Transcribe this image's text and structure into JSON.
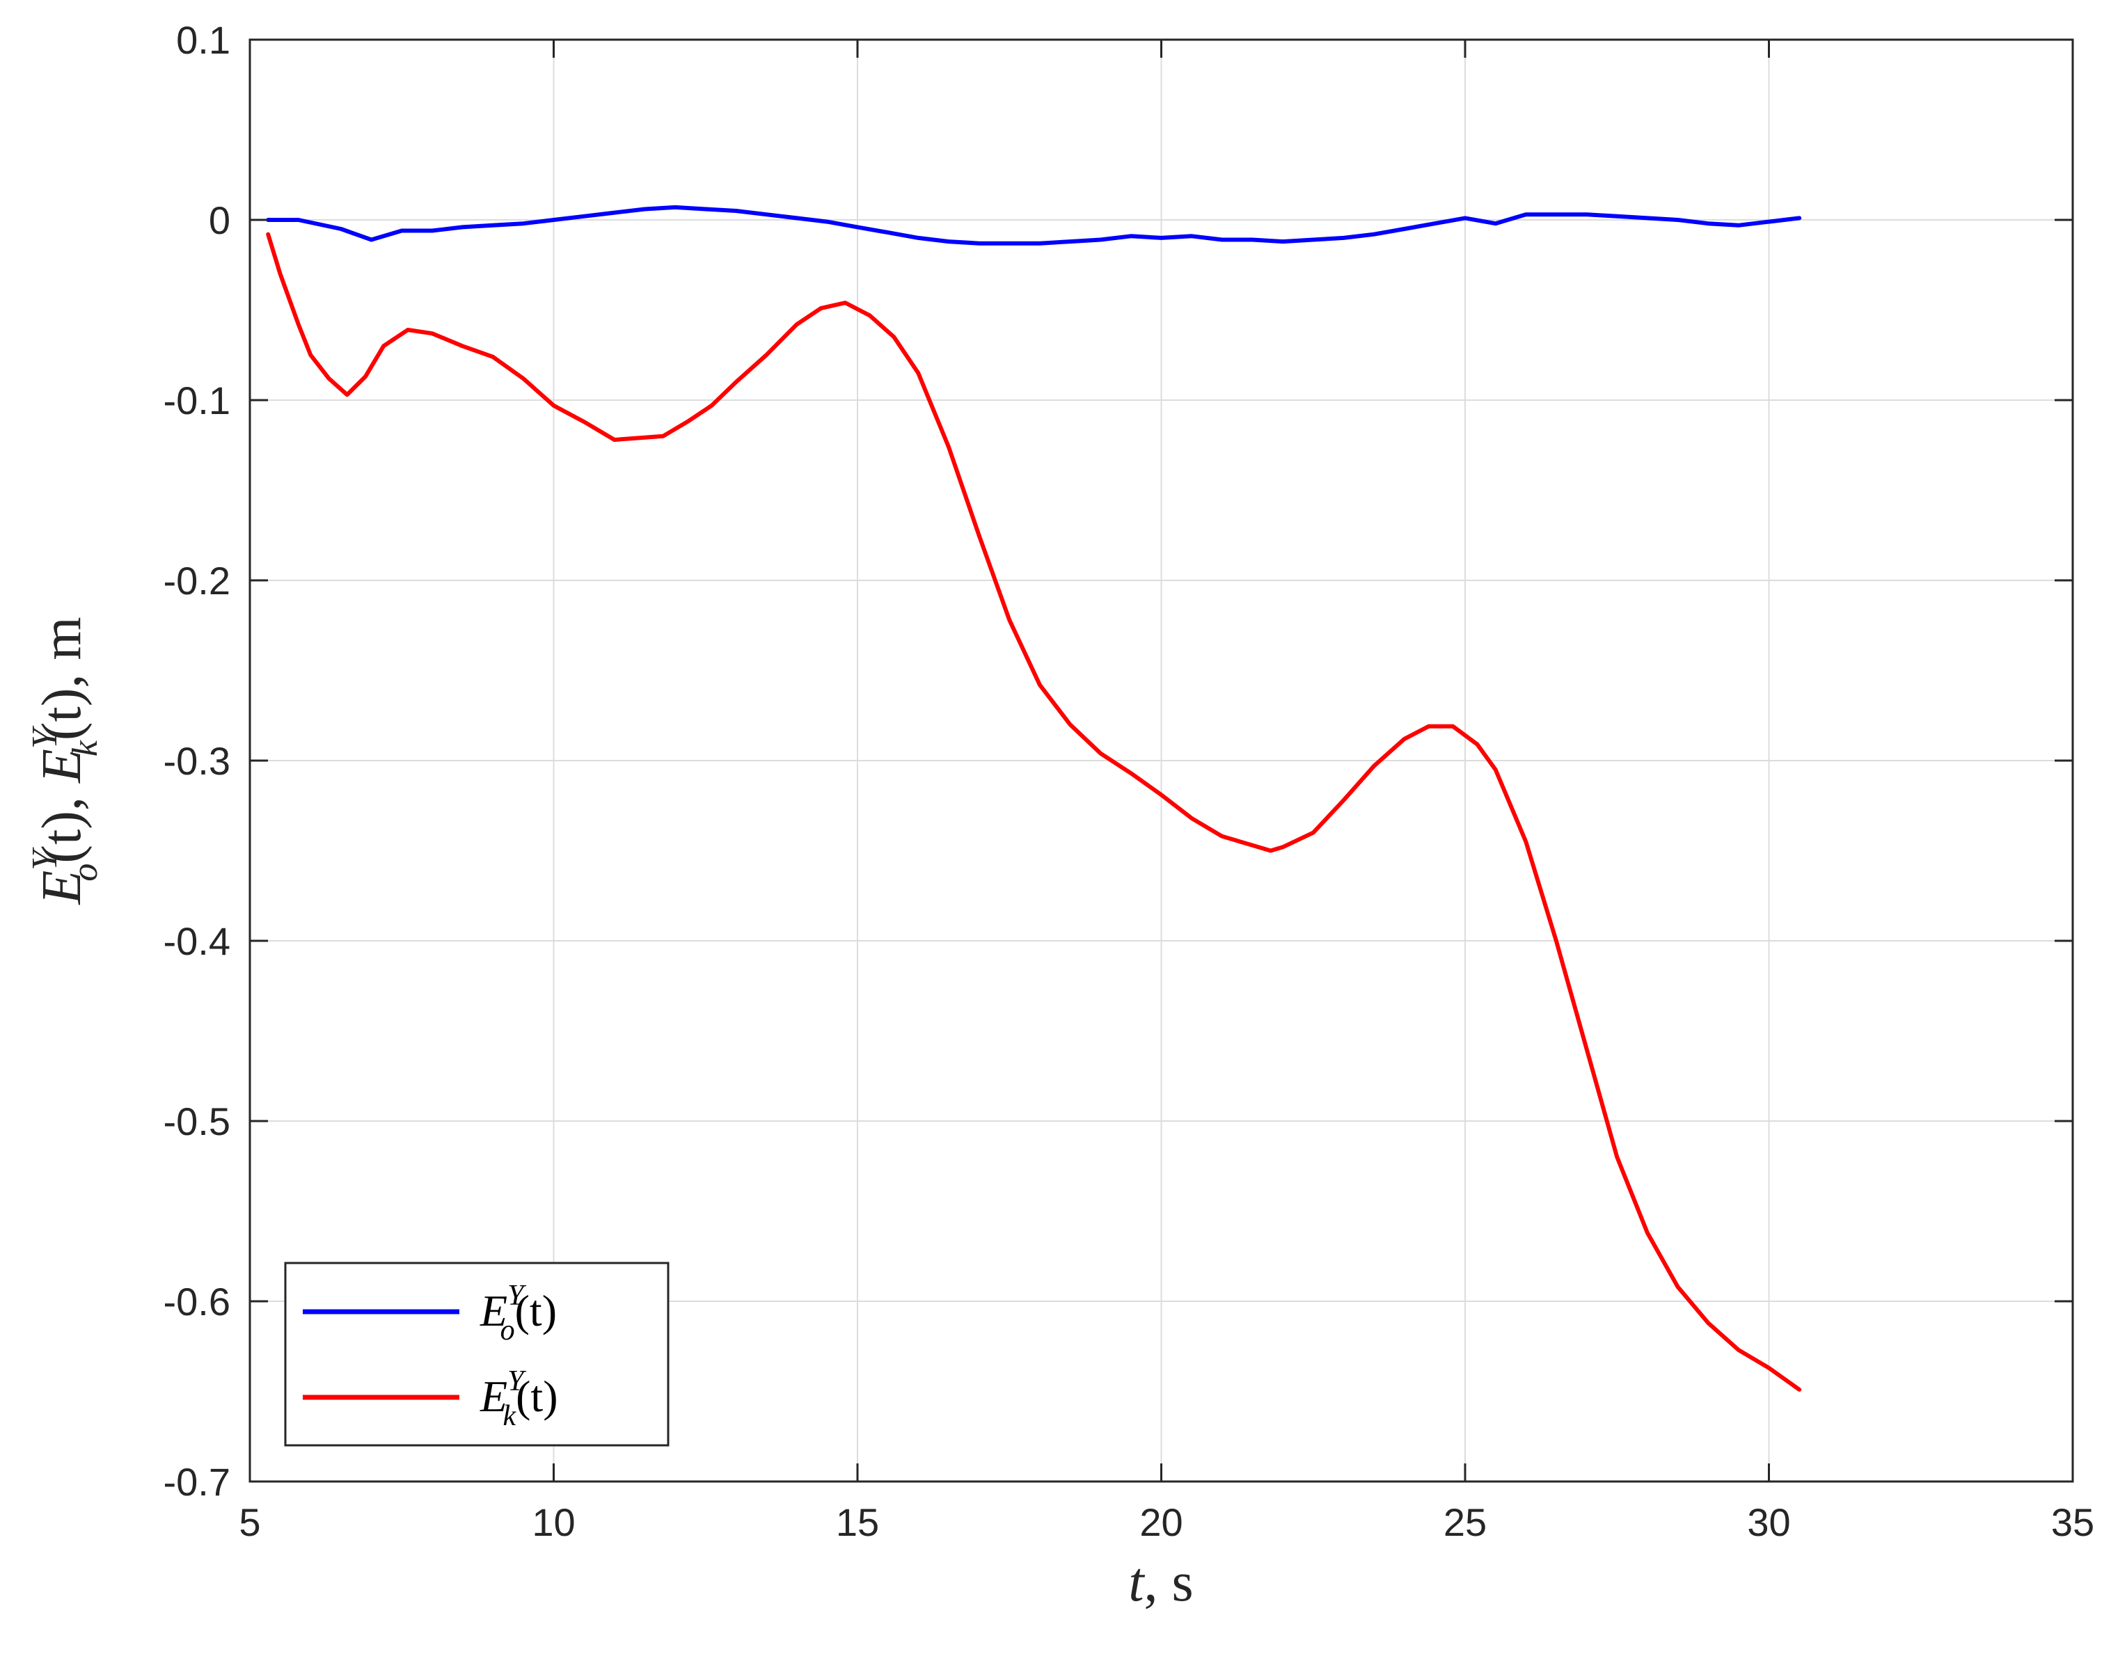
{
  "chart_data": {
    "type": "line",
    "xlabel": {
      "var": "t",
      "rest": ", s"
    },
    "ylabel": {
      "main": "E",
      "sub1": "o",
      "sub2": "k",
      "sup": "Y",
      "arg": "(t)",
      "sep": ", ",
      "unit": ", m"
    },
    "xlim": [
      5,
      35
    ],
    "ylim": [
      -0.7,
      0.1
    ],
    "xticks": [
      "5",
      "10",
      "15",
      "20",
      "25",
      "30",
      "35"
    ],
    "yticks": [
      "0.1",
      "0",
      "-0.1",
      "-0.2",
      "-0.3",
      "-0.4",
      "-0.5",
      "-0.6",
      "-0.7"
    ],
    "grid": true,
    "legend_position": "bottom-left",
    "series": [
      {
        "name": {
          "main": "E",
          "sup": "Y",
          "sub": "o",
          "arg": "(t)"
        },
        "color": "#0000ff",
        "x": [
          5.3,
          5.8,
          6.5,
          7.0,
          7.5,
          8.0,
          8.5,
          9.0,
          9.5,
          10.0,
          10.5,
          11.0,
          11.5,
          12.0,
          12.5,
          13.0,
          13.5,
          14.0,
          14.5,
          15.0,
          15.5,
          16.0,
          16.5,
          17.0,
          17.5,
          18.0,
          18.5,
          19.0,
          19.5,
          20.0,
          20.5,
          21.0,
          21.5,
          22.0,
          22.5,
          23.0,
          23.5,
          24.0,
          24.5,
          25.0,
          25.5,
          26.0,
          26.5,
          27.0,
          27.5,
          28.0,
          28.5,
          29.0,
          29.5,
          30.0,
          30.5
        ],
        "y": [
          0.0,
          0.0,
          -0.005,
          -0.011,
          -0.006,
          -0.006,
          -0.004,
          -0.003,
          -0.002,
          0.0,
          0.002,
          0.004,
          0.006,
          0.007,
          0.006,
          0.005,
          0.003,
          0.001,
          -0.001,
          -0.004,
          -0.007,
          -0.01,
          -0.012,
          -0.013,
          -0.013,
          -0.013,
          -0.012,
          -0.011,
          -0.009,
          -0.01,
          -0.009,
          -0.011,
          -0.011,
          -0.012,
          -0.011,
          -0.01,
          -0.008,
          -0.005,
          -0.002,
          0.001,
          -0.002,
          0.003,
          0.003,
          0.003,
          0.002,
          0.001,
          0.0,
          -0.002,
          -0.003,
          -0.001,
          0.001
        ]
      },
      {
        "name": {
          "main": "E",
          "sup": "Y",
          "sub": "k",
          "arg": "(t)"
        },
        "color": "#ff0000",
        "x": [
          5.3,
          5.5,
          5.8,
          6.0,
          6.3,
          6.6,
          6.9,
          7.2,
          7.6,
          8.0,
          8.5,
          9.0,
          9.5,
          10.0,
          10.5,
          11.0,
          11.4,
          11.8,
          12.2,
          12.6,
          13.0,
          13.5,
          14.0,
          14.4,
          14.8,
          15.2,
          15.6,
          16.0,
          16.5,
          17.0,
          17.5,
          18.0,
          18.5,
          19.0,
          19.5,
          20.0,
          20.5,
          21.0,
          21.5,
          21.8,
          22.0,
          22.5,
          23.0,
          23.5,
          24.0,
          24.4,
          24.8,
          25.2,
          25.5,
          26.0,
          26.5,
          27.0,
          27.5,
          28.0,
          28.5,
          29.0,
          29.5,
          30.0,
          30.5
        ],
        "y": [
          -0.008,
          -0.03,
          -0.058,
          -0.075,
          -0.088,
          -0.097,
          -0.087,
          -0.07,
          -0.061,
          -0.063,
          -0.07,
          -0.076,
          -0.088,
          -0.103,
          -0.112,
          -0.122,
          -0.121,
          -0.12,
          -0.112,
          -0.103,
          -0.09,
          -0.075,
          -0.058,
          -0.049,
          -0.046,
          -0.053,
          -0.065,
          -0.085,
          -0.126,
          -0.175,
          -0.222,
          -0.258,
          -0.28,
          -0.296,
          -0.307,
          -0.319,
          -0.332,
          -0.342,
          -0.347,
          -0.35,
          -0.348,
          -0.34,
          -0.322,
          -0.303,
          -0.288,
          -0.281,
          -0.281,
          -0.291,
          -0.305,
          -0.345,
          -0.4,
          -0.46,
          -0.52,
          -0.562,
          -0.592,
          -0.612,
          -0.627,
          -0.637,
          -0.649
        ]
      }
    ]
  }
}
